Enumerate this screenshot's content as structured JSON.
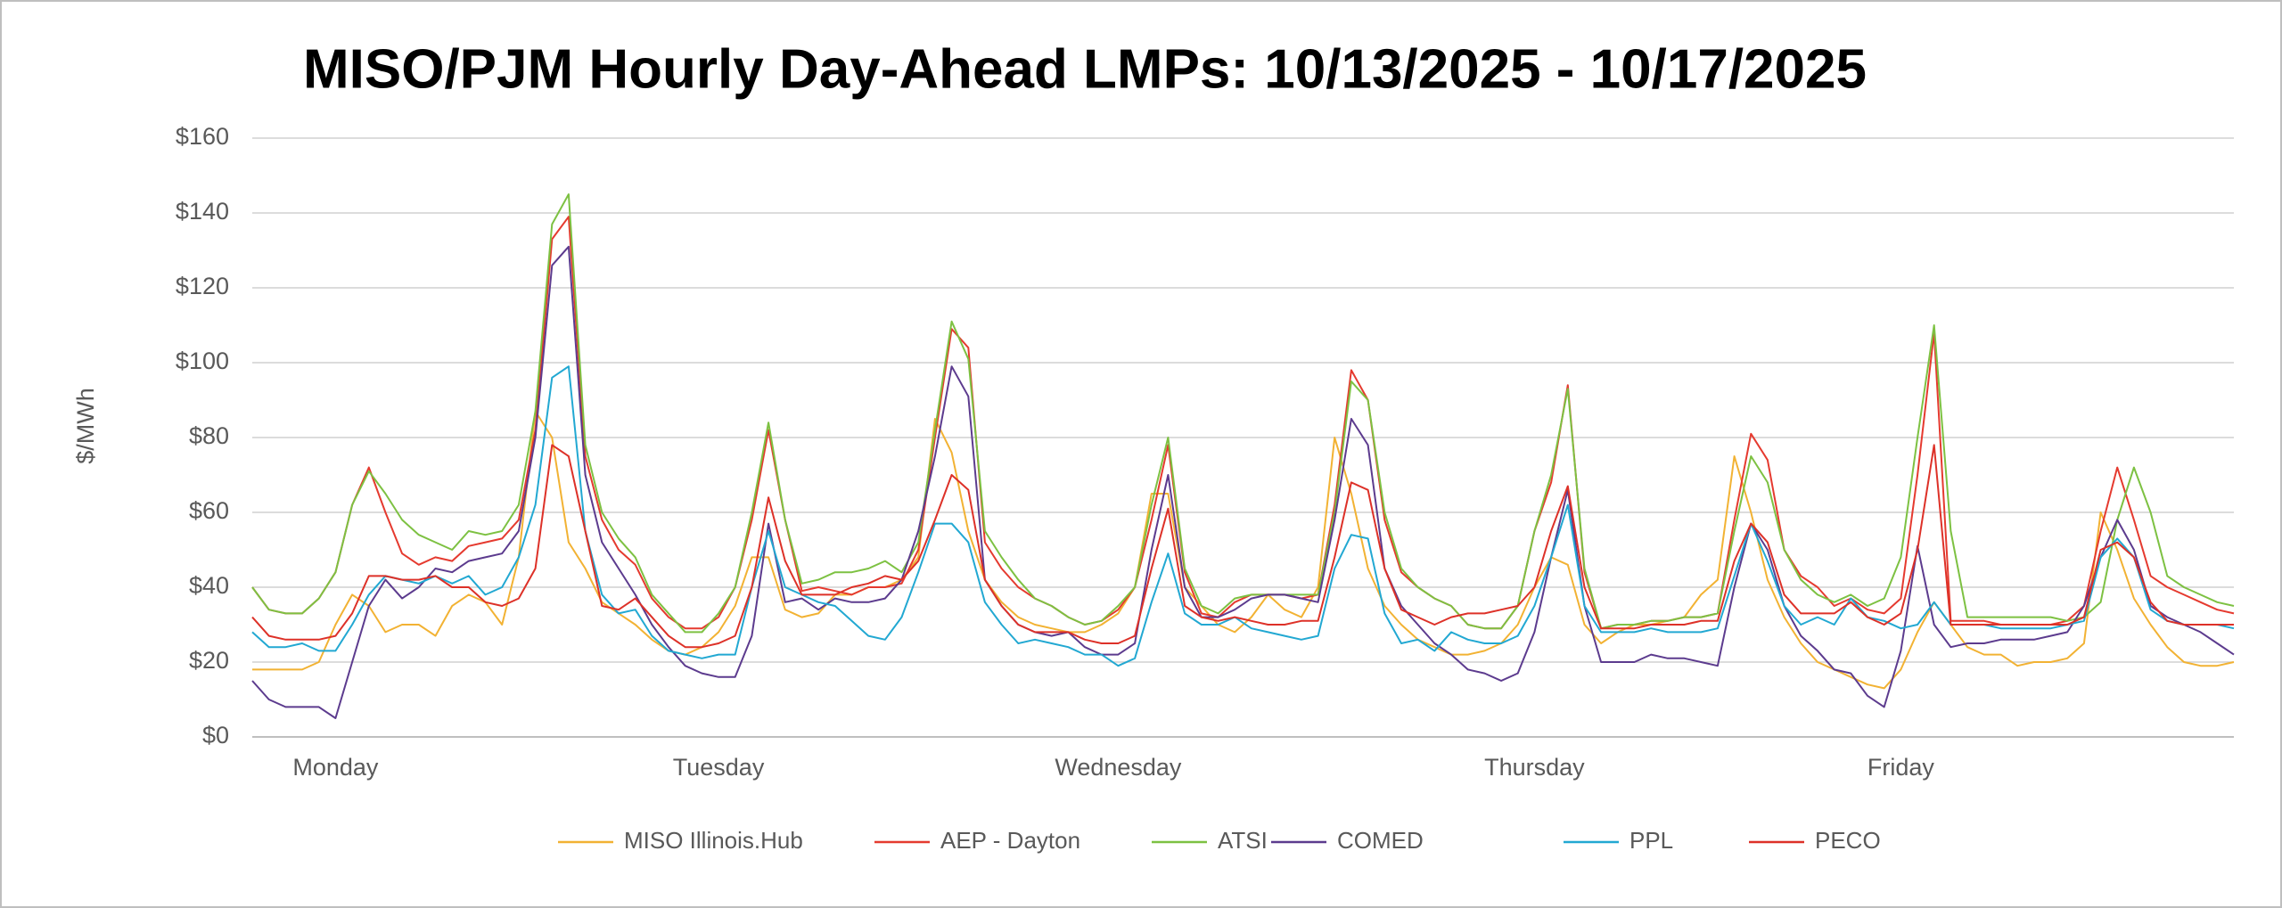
{
  "chart_data": {
    "type": "line",
    "title": "MISO/PJM Hourly Day-Ahead LMPs: 10/13/2025 - 10/17/2025",
    "y_label": "$/MWh",
    "categories": [
      null,
      null,
      null,
      null,
      null,
      "Monday",
      null,
      null,
      null,
      null,
      null,
      null,
      null,
      null,
      null,
      null,
      null,
      null,
      null,
      null,
      null,
      null,
      null,
      null,
      null,
      null,
      null,
      null,
      "Tuesday",
      null,
      null,
      null,
      null,
      null,
      null,
      null,
      null,
      null,
      null,
      null,
      null,
      null,
      null,
      null,
      null,
      null,
      null,
      null,
      null,
      null,
      null,
      null,
      "Wednesday",
      null,
      null,
      null,
      null,
      null,
      null,
      null,
      null,
      null,
      null,
      null,
      null,
      null,
      null,
      null,
      null,
      null,
      null,
      null,
      null,
      null,
      null,
      null,
      null,
      "Thursday",
      null,
      null,
      null,
      null,
      null,
      null,
      null,
      null,
      null,
      null,
      null,
      null,
      null,
      null,
      null,
      null,
      null,
      null,
      null,
      null,
      null,
      "Friday",
      null,
      null,
      null,
      null,
      null,
      null,
      null,
      null,
      null,
      null,
      null,
      null,
      null,
      null,
      null,
      null,
      null,
      null,
      null,
      null
    ],
    "ylim": [
      0,
      160
    ],
    "yticks": [
      {
        "value": 0,
        "label": "$0"
      },
      {
        "value": 20,
        "label": "$20"
      },
      {
        "value": 40,
        "label": "$40"
      },
      {
        "value": 60,
        "label": "$60"
      },
      {
        "value": 80,
        "label": "$80"
      },
      {
        "value": 100,
        "label": "$100"
      },
      {
        "value": 120,
        "label": "$120"
      },
      {
        "value": 140,
        "label": "$140"
      },
      {
        "value": 160,
        "label": "$160"
      }
    ],
    "grid": true,
    "legend": "bottom",
    "series": [
      {
        "name": "MISO Illinois.Hub",
        "color": "#f2b233",
        "values": [
          18,
          18,
          18,
          18,
          20,
          30,
          38,
          35,
          28,
          30,
          30,
          27,
          35,
          38,
          36,
          30,
          48,
          87,
          80,
          52,
          45,
          36,
          33,
          30,
          26,
          23,
          22,
          24,
          28,
          35,
          48,
          48,
          34,
          32,
          33,
          38,
          38,
          40,
          40,
          42,
          48,
          85,
          76,
          55,
          42,
          36,
          32,
          30,
          29,
          28,
          28,
          30,
          33,
          40,
          65,
          65,
          40,
          35,
          30,
          28,
          32,
          38,
          34,
          32,
          40,
          80,
          65,
          45,
          35,
          30,
          26,
          24,
          22,
          22,
          23,
          25,
          30,
          40,
          48,
          46,
          30,
          25,
          28,
          30,
          30,
          31,
          32,
          38,
          42,
          75,
          60,
          42,
          32,
          25,
          20,
          18,
          16,
          14,
          13,
          18,
          28,
          36,
          30,
          24,
          22,
          22,
          19,
          20,
          20,
          21,
          25,
          60,
          50,
          37,
          30,
          24,
          20,
          19,
          19,
          20
        ]
      },
      {
        "name": "AEP - Dayton",
        "color": "#e53a2f",
        "values": [
          40,
          34,
          33,
          33,
          37,
          44,
          62,
          72,
          60,
          49,
          46,
          48,
          47,
          51,
          52,
          53,
          58,
          82,
          133,
          139,
          75,
          58,
          50,
          46,
          37,
          32,
          29,
          29,
          32,
          40,
          58,
          82,
          58,
          39,
          40,
          39,
          38,
          40,
          40,
          41,
          50,
          80,
          109,
          104,
          52,
          45,
          40,
          37,
          35,
          32,
          30,
          31,
          34,
          40,
          58,
          78,
          44,
          33,
          32,
          36,
          38,
          38,
          38,
          37,
          38,
          62,
          98,
          90,
          58,
          44,
          40,
          37,
          35,
          30,
          29,
          29,
          35,
          55,
          68,
          94,
          44,
          29,
          30,
          30,
          31,
          31,
          32,
          32,
          33,
          58,
          81,
          74,
          50,
          43,
          40,
          35,
          37,
          34,
          33,
          37,
          70,
          108,
          31,
          31,
          31,
          30,
          30,
          30,
          30,
          31,
          35,
          55,
          72,
          58,
          43,
          40,
          38,
          36,
          34,
          33
        ]
      },
      {
        "name": "ATSI",
        "color": "#7dc142",
        "values": [
          40,
          34,
          33,
          33,
          37,
          44,
          62,
          71,
          65,
          58,
          54,
          52,
          50,
          55,
          54,
          55,
          62,
          87,
          137,
          145,
          78,
          60,
          53,
          48,
          38,
          33,
          28,
          28,
          33,
          40,
          60,
          84,
          58,
          41,
          42,
          44,
          44,
          45,
          47,
          44,
          52,
          82,
          111,
          101,
          55,
          48,
          42,
          37,
          35,
          32,
          30,
          31,
          35,
          40,
          62,
          80,
          45,
          35,
          33,
          37,
          38,
          38,
          38,
          38,
          38,
          60,
          95,
          90,
          60,
          45,
          40,
          37,
          35,
          30,
          29,
          29,
          35,
          55,
          70,
          93,
          45,
          29,
          30,
          30,
          31,
          31,
          32,
          32,
          33,
          55,
          75,
          68,
          50,
          42,
          38,
          36,
          38,
          35,
          37,
          48,
          80,
          110,
          55,
          32,
          32,
          32,
          32,
          32,
          32,
          31,
          32,
          36,
          58,
          72,
          60,
          43,
          40,
          38,
          36,
          35
        ]
      },
      {
        "name": "COMED",
        "color": "#5c3b8e",
        "values": [
          15,
          10,
          8,
          8,
          8,
          5,
          20,
          35,
          42,
          37,
          40,
          45,
          44,
          47,
          48,
          49,
          55,
          80,
          126,
          131,
          70,
          52,
          45,
          38,
          30,
          24,
          19,
          17,
          16,
          16,
          27,
          57,
          36,
          37,
          34,
          37,
          36,
          36,
          37,
          42,
          55,
          75,
          99,
          91,
          42,
          35,
          30,
          28,
          27,
          28,
          24,
          22,
          22,
          25,
          50,
          70,
          40,
          32,
          32,
          34,
          37,
          38,
          38,
          37,
          36,
          58,
          85,
          78,
          45,
          35,
          30,
          25,
          22,
          18,
          17,
          15,
          17,
          28,
          48,
          66,
          35,
          20,
          20,
          20,
          22,
          21,
          21,
          20,
          19,
          40,
          57,
          50,
          35,
          27,
          23,
          18,
          17,
          11,
          8,
          23,
          51,
          30,
          24,
          25,
          25,
          26,
          26,
          26,
          27,
          28,
          35,
          48,
          58,
          50,
          35,
          32,
          30,
          28,
          25,
          22
        ]
      },
      {
        "name": "PPL",
        "color": "#22a8d2",
        "values": [
          28,
          24,
          24,
          25,
          23,
          23,
          30,
          38,
          43,
          42,
          41,
          43,
          41,
          43,
          38,
          40,
          48,
          62,
          96,
          99,
          55,
          38,
          33,
          34,
          27,
          23,
          22,
          21,
          22,
          22,
          40,
          55,
          40,
          38,
          36,
          35,
          31,
          27,
          26,
          32,
          44,
          57,
          57,
          52,
          36,
          30,
          25,
          26,
          25,
          24,
          22,
          22,
          19,
          21,
          36,
          49,
          33,
          30,
          30,
          32,
          29,
          28,
          27,
          26,
          27,
          45,
          54,
          53,
          33,
          25,
          26,
          23,
          28,
          26,
          25,
          25,
          27,
          35,
          48,
          62,
          35,
          28,
          28,
          28,
          29,
          28,
          28,
          28,
          29,
          43,
          57,
          47,
          35,
          30,
          32,
          30,
          37,
          32,
          31,
          29,
          30,
          36,
          30,
          30,
          30,
          29,
          29,
          29,
          29,
          30,
          31,
          48,
          53,
          48,
          34,
          31,
          30,
          30,
          30,
          29
        ]
      },
      {
        "name": "PECO",
        "color": "#dd3128",
        "values": [
          32,
          27,
          26,
          26,
          26,
          27,
          33,
          43,
          43,
          42,
          42,
          43,
          40,
          40,
          36,
          35,
          37,
          45,
          78,
          75,
          55,
          35,
          34,
          37,
          32,
          27,
          24,
          24,
          25,
          27,
          40,
          64,
          47,
          38,
          38,
          38,
          40,
          41,
          43,
          42,
          47,
          58,
          70,
          66,
          42,
          35,
          30,
          28,
          28,
          28,
          26,
          25,
          25,
          27,
          45,
          61,
          35,
          32,
          31,
          32,
          31,
          30,
          30,
          31,
          31,
          48,
          68,
          66,
          45,
          34,
          32,
          30,
          32,
          33,
          33,
          34,
          35,
          40,
          55,
          67,
          40,
          29,
          29,
          29,
          30,
          30,
          30,
          31,
          31,
          47,
          57,
          52,
          38,
          33,
          33,
          33,
          36,
          32,
          30,
          33,
          50,
          78,
          30,
          30,
          30,
          30,
          30,
          30,
          30,
          30,
          32,
          50,
          52,
          48,
          36,
          31,
          30,
          30,
          30,
          30
        ]
      }
    ]
  }
}
